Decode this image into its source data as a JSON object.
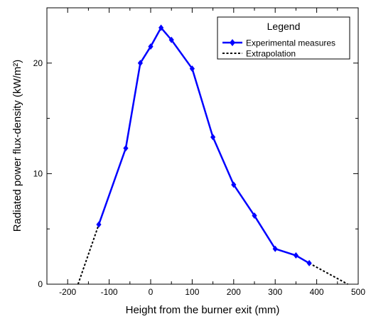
{
  "chart_data": {
    "type": "line",
    "xlabel": "Height from the burner exit (mm)",
    "ylabel": "Radiated power flux-density (kW/m²)",
    "xlim": [
      -250,
      500
    ],
    "ylim": [
      0,
      25
    ],
    "x_ticks": [
      -200,
      -100,
      0,
      100,
      200,
      300,
      400,
      500
    ],
    "y_ticks": [
      0,
      10,
      20
    ],
    "x_tick_labels": [
      "-200",
      "-100",
      "0",
      "100",
      "200",
      "300",
      "400",
      "500"
    ],
    "y_tick_labels": [
      "0",
      "10",
      "20"
    ],
    "grid": false,
    "legend": {
      "title": "Legend",
      "position": "top-right",
      "entries": [
        "Experimental measures",
        "Extrapolation"
      ]
    },
    "series": [
      {
        "name": "Experimental measures",
        "color": "#0000ff",
        "style": "solid",
        "marker": "diamond",
        "x": [
          -125,
          -60,
          -25,
          0,
          25,
          50,
          100,
          150,
          200,
          250,
          300,
          350,
          382
        ],
        "y": [
          5.4,
          12.3,
          20.0,
          21.5,
          23.2,
          22.1,
          19.5,
          13.3,
          9.0,
          6.2,
          3.2,
          2.6,
          1.9
        ]
      },
      {
        "name": "Extrapolation",
        "color": "#000000",
        "style": "dashed",
        "marker": "none",
        "segments": [
          {
            "x": [
              -175,
              -125
            ],
            "y": [
              0,
              5.4
            ]
          },
          {
            "x": [
              382,
              475
            ],
            "y": [
              1.9,
              0
            ]
          }
        ]
      }
    ]
  }
}
